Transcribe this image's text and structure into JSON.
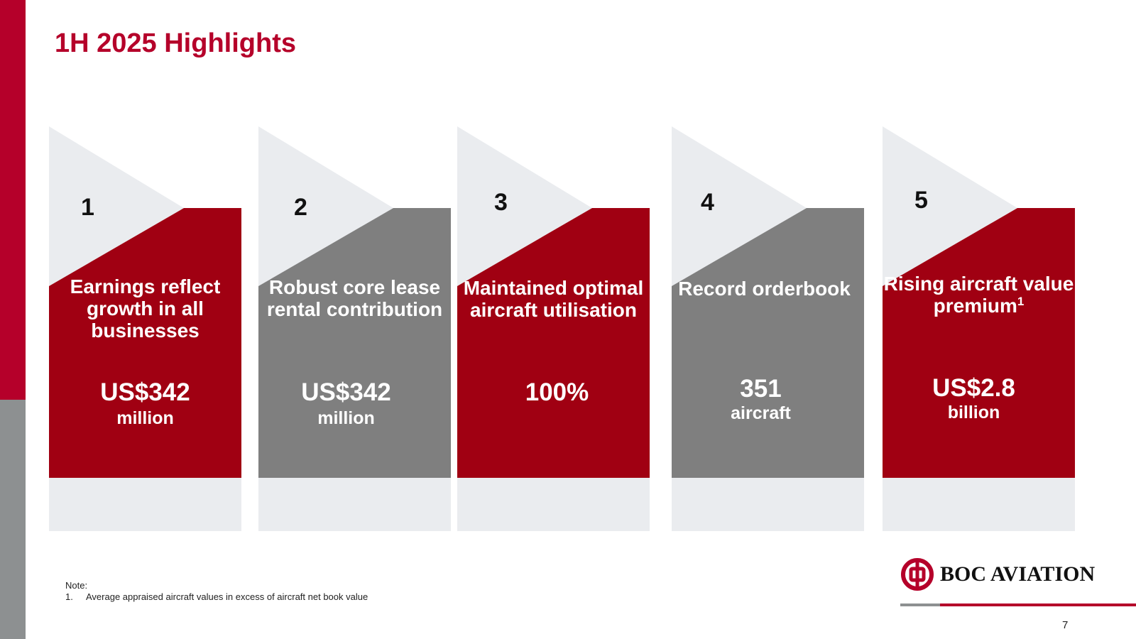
{
  "slide": {
    "title": "1H 2025 Highlights",
    "page_number": "7"
  },
  "colors": {
    "brand_red": "#b5002a",
    "card_red": "#a00012",
    "card_grey": "#7f7f7f",
    "card_light": "#eaecef",
    "side_grey": "#8d9091"
  },
  "cards": [
    {
      "number": "1",
      "heading": "Earnings reflect growth in all businesses",
      "value": "US$342",
      "unit": "million",
      "color": "red"
    },
    {
      "number": "2",
      "heading": "Robust core lease rental contribution",
      "value": "US$342",
      "unit": "million",
      "color": "grey"
    },
    {
      "number": "3",
      "heading": "Maintained optimal aircraft utilisation",
      "value": "100%",
      "unit": "",
      "color": "red"
    },
    {
      "number": "4",
      "heading": "Record orderbook",
      "value": "351",
      "unit": "aircraft",
      "color": "grey"
    },
    {
      "number": "5",
      "heading": "Rising aircraft value premium",
      "heading_superscript": "1",
      "value": "US$2.8",
      "unit": "billion",
      "color": "red"
    }
  ],
  "note": {
    "label": "Note:",
    "items": [
      {
        "index": "1.",
        "text": "Average appraised aircraft values in excess of aircraft net book value"
      }
    ]
  },
  "logo": {
    "text": "BOC AVIATION",
    "icon": "bank-of-china-logo-icon"
  }
}
